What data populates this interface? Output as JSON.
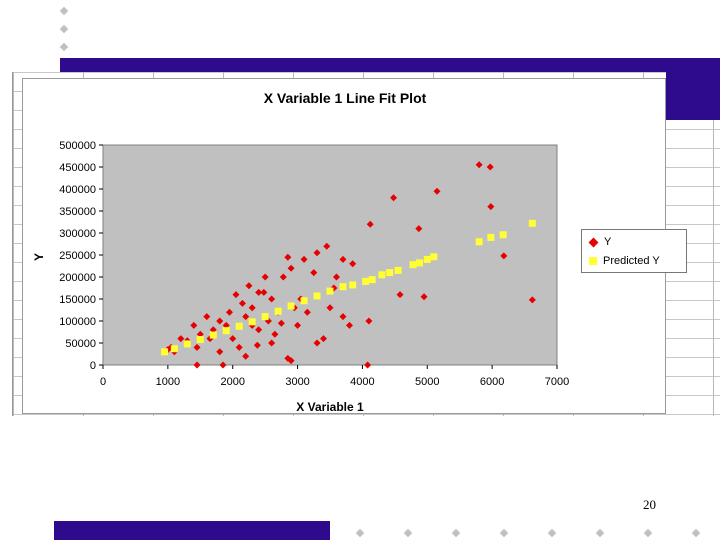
{
  "slide": {
    "page_number": "20",
    "accent_color": "#2e0a8c",
    "background_color": "#ffffff"
  },
  "chart_data": {
    "type": "scatter",
    "title": "X Variable 1 Line Fit  Plot",
    "xlabel": "X Variable 1",
    "ylabel": "Y",
    "xlim": [
      0,
      7000
    ],
    "ylim": [
      0,
      500000
    ],
    "x_ticks": [
      "0",
      "1000",
      "2000",
      "3000",
      "4000",
      "5000",
      "6000",
      "7000"
    ],
    "y_ticks": [
      "0",
      "50000",
      "100000",
      "150000",
      "200000",
      "250000",
      "300000",
      "350000",
      "400000",
      "450000",
      "500000"
    ],
    "plot_area_color": "#c0c0c0",
    "grid": false,
    "legend_position": "right",
    "series": [
      {
        "name": "Y",
        "color": "#e60000",
        "marker": "diamond",
        "points": [
          [
            5800,
            455000
          ],
          [
            5970,
            450000
          ],
          [
            5150,
            395000
          ],
          [
            4480,
            380000
          ],
          [
            5980,
            360000
          ],
          [
            4120,
            320000
          ],
          [
            4870,
            310000
          ],
          [
            6180,
            248000
          ],
          [
            6620,
            148000
          ],
          [
            4950,
            155000
          ],
          [
            4580,
            160000
          ],
          [
            4100,
            100000
          ],
          [
            4080,
            0
          ],
          [
            3850,
            230000
          ],
          [
            3700,
            240000
          ],
          [
            3600,
            200000
          ],
          [
            3560,
            175000
          ],
          [
            3450,
            270000
          ],
          [
            3300,
            255000
          ],
          [
            3250,
            210000
          ],
          [
            3100,
            240000
          ],
          [
            2900,
            220000
          ],
          [
            2850,
            245000
          ],
          [
            2780,
            200000
          ],
          [
            3500,
            130000
          ],
          [
            3700,
            110000
          ],
          [
            3800,
            90000
          ],
          [
            3400,
            60000
          ],
          [
            3300,
            50000
          ],
          [
            2850,
            15000
          ],
          [
            2900,
            10000
          ],
          [
            2600,
            150000
          ],
          [
            2500,
            200000
          ],
          [
            2400,
            165000
          ],
          [
            2300,
            130000
          ],
          [
            2200,
            110000
          ],
          [
            2150,
            140000
          ],
          [
            2050,
            160000
          ],
          [
            1950,
            120000
          ],
          [
            1900,
            90000
          ],
          [
            1800,
            100000
          ],
          [
            1700,
            80000
          ],
          [
            1650,
            60000
          ],
          [
            1600,
            110000
          ],
          [
            1500,
            70000
          ],
          [
            1450,
            40000
          ],
          [
            1400,
            90000
          ],
          [
            1300,
            55000
          ],
          [
            1200,
            60000
          ],
          [
            1100,
            30000
          ],
          [
            1050,
            40000
          ],
          [
            1000,
            35000
          ],
          [
            2000,
            60000
          ],
          [
            2100,
            40000
          ],
          [
            2200,
            20000
          ],
          [
            1800,
            30000
          ],
          [
            1850,
            0
          ],
          [
            1450,
            0
          ],
          [
            2400,
            80000
          ],
          [
            2550,
            100000
          ],
          [
            2700,
            120000
          ],
          [
            2650,
            70000
          ],
          [
            2750,
            95000
          ],
          [
            2950,
            130000
          ],
          [
            3050,
            150000
          ],
          [
            3150,
            120000
          ],
          [
            3000,
            90000
          ],
          [
            2480,
            165000
          ],
          [
            2380,
            45000
          ],
          [
            2600,
            50000
          ],
          [
            2300,
            90000
          ],
          [
            2250,
            180000
          ]
        ]
      },
      {
        "name": "Predicted Y",
        "color": "#ffff33",
        "marker": "square",
        "points": [
          [
            950,
            30000
          ],
          [
            1100,
            37000
          ],
          [
            1300,
            48000
          ],
          [
            1500,
            58000
          ],
          [
            1700,
            68000
          ],
          [
            1900,
            78000
          ],
          [
            2100,
            88000
          ],
          [
            2300,
            98000
          ],
          [
            2500,
            110000
          ],
          [
            2700,
            122000
          ],
          [
            2900,
            134000
          ],
          [
            3100,
            146000
          ],
          [
            3300,
            157000
          ],
          [
            3500,
            168000
          ],
          [
            3700,
            178000
          ],
          [
            3850,
            182000
          ],
          [
            4050,
            190000
          ],
          [
            4150,
            194000
          ],
          [
            4300,
            205000
          ],
          [
            4420,
            210000
          ],
          [
            4550,
            215000
          ],
          [
            4780,
            228000
          ],
          [
            4880,
            232000
          ],
          [
            5000,
            240000
          ],
          [
            5100,
            246000
          ],
          [
            5800,
            280000
          ],
          [
            5980,
            290000
          ],
          [
            6170,
            296000
          ],
          [
            6620,
            322000
          ]
        ]
      }
    ]
  }
}
